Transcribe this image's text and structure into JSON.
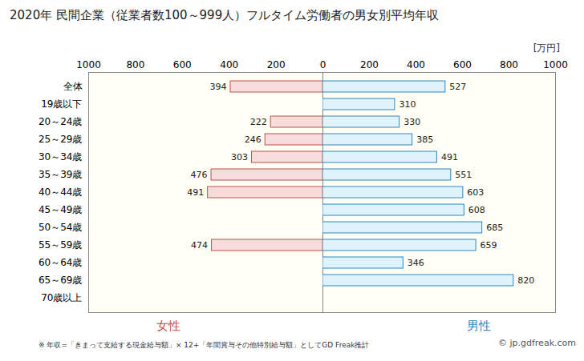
{
  "chart_data": {
    "type": "bar",
    "orientation": "horizontal",
    "title": "2020年 民間企業（従業者数100～999人）フルタイム労働者の男女別平均年収",
    "x_label": "[万円]",
    "categories": [
      "全体",
      "19歳以下",
      "20～24歳",
      "25～29歳",
      "30～34歳",
      "35～39歳",
      "40～44歳",
      "45～49歳",
      "50～54歳",
      "55～59歳",
      "60～64歳",
      "65～69歳",
      "70歳以上"
    ],
    "series": [
      {
        "name": "女性",
        "color": "#f8dcdc",
        "values": [
          394,
          null,
          222,
          246,
          303,
          476,
          491,
          null,
          null,
          474,
          null,
          null,
          null
        ]
      },
      {
        "name": "男性",
        "color": "#def3fb",
        "values": [
          527,
          310,
          330,
          385,
          491,
          551,
          603,
          608,
          685,
          659,
          346,
          820,
          null
        ]
      }
    ],
    "xlim": [
      0,
      1000
    ],
    "xticks": [
      0,
      200,
      400,
      600,
      800,
      1000
    ],
    "data_labels": true,
    "grid": false,
    "note": "※ 年収=「きまって支給する現金給与額」× 12+「年間賞与その他特別給与額」としてGD Freak推計",
    "source": "© jp.gdfreak.com"
  }
}
